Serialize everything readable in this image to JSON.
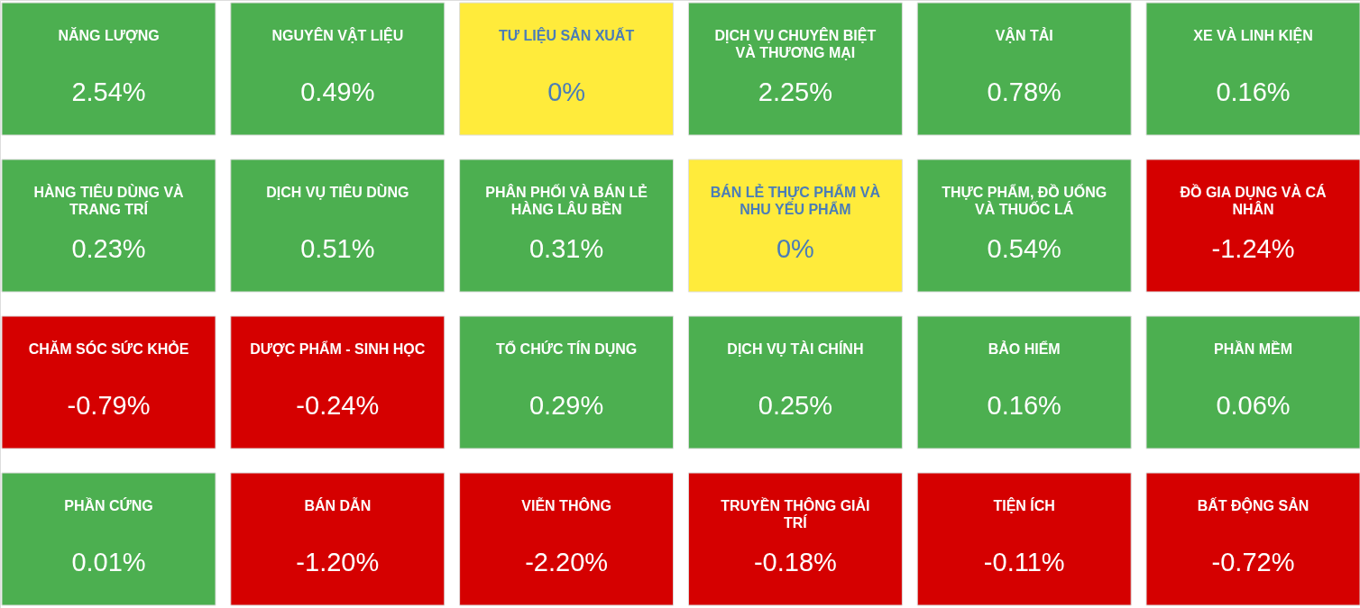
{
  "chart_data": {
    "type": "other",
    "categories": [
      "NĂNG LƯỢNG",
      "NGUYÊN VẬT LIỆU",
      "TƯ LIỆU SẢN XUẤT",
      "DỊCH VỤ CHUYÊN BIỆT VÀ THƯƠNG MẠI",
      "VẬN TẢI",
      "XE VÀ LINH KIỆN",
      "HÀNG TIÊU DÙNG VÀ TRANG TRÍ",
      "DỊCH VỤ TIÊU DÙNG",
      "PHÂN PHỐI VÀ BÁN LẺ HÀNG LÂU BỀN",
      "BÁN LẺ THỰC PHẨM VÀ NHU YẾU PHẨM",
      "THỰC PHẨM, ĐỒ UỐNG VÀ THUỐC LÁ",
      "ĐỒ GIA DỤNG VÀ CÁ NHÂN",
      "CHĂM SÓC SỨC KHỎE",
      "DƯỢC PHẨM - SINH HỌC",
      "TỔ CHỨC TÍN DỤNG",
      "DỊCH VỤ TÀI CHÍNH",
      "BẢO HIỂM",
      "PHẦN MỀM",
      "PHẦN CỨNG",
      "BÁN DẪN",
      "VIỄN THÔNG",
      "TRUYỀN THÔNG GIẢI TRÍ",
      "TIỆN ÍCH",
      "BẤT ĐỘNG SẢN"
    ],
    "values": [
      2.54,
      0.49,
      0,
      2.25,
      0.78,
      0.16,
      0.23,
      0.51,
      0.31,
      0,
      0.54,
      -1.24,
      -0.79,
      -0.24,
      0.29,
      0.25,
      0.16,
      0.06,
      0.01,
      -1.2,
      -2.2,
      -0.18,
      -0.11,
      -0.72
    ],
    "value_labels": [
      "2.54%",
      "0.49%",
      "0%",
      "2.25%",
      "0.78%",
      "0.16%",
      "0.23%",
      "0.51%",
      "0.31%",
      "0%",
      "0.54%",
      "-1.24%",
      "-0.79%",
      "-0.24%",
      "0.29%",
      "0.25%",
      "0.16%",
      "0.06%",
      "0.01%",
      "-1.20%",
      "-2.20%",
      "-0.18%",
      "-0.11%",
      "-0.72%"
    ],
    "colors": [
      "#4caf50",
      "#4caf50",
      "#ffeb3b",
      "#4caf50",
      "#4caf50",
      "#4caf50",
      "#4caf50",
      "#4caf50",
      "#4caf50",
      "#ffeb3b",
      "#4caf50",
      "#d50000",
      "#d50000",
      "#d50000",
      "#4caf50",
      "#4caf50",
      "#4caf50",
      "#4caf50",
      "#4caf50",
      "#d50000",
      "#d50000",
      "#d50000",
      "#d50000",
      "#d50000"
    ]
  }
}
